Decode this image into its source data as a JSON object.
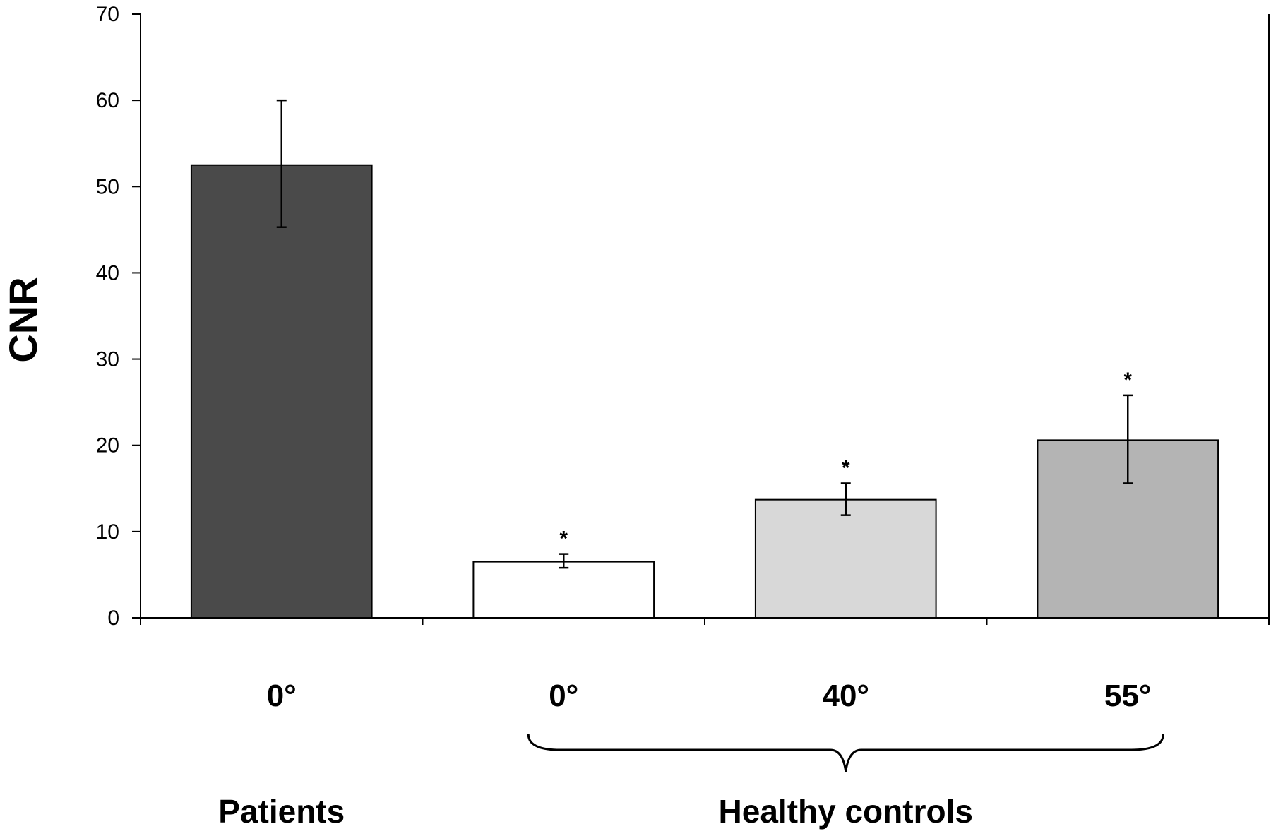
{
  "chart_data": {
    "type": "bar",
    "title": "",
    "xlabel": "",
    "ylabel": "CNR",
    "ylim": [
      0,
      70
    ],
    "yticks": [
      0,
      10,
      20,
      30,
      40,
      50,
      60,
      70
    ],
    "grid": false,
    "legend": "none",
    "categories": [
      "0°",
      "0°",
      "40°",
      "55°"
    ],
    "values": [
      52.5,
      6.5,
      13.7,
      20.6
    ],
    "error_low": [
      45.3,
      5.8,
      11.9,
      15.6
    ],
    "error_high": [
      60.0,
      7.4,
      15.6,
      25.8
    ],
    "significance": [
      "",
      "*",
      "*",
      "*"
    ],
    "bar_colors": [
      "#4a4a4a",
      "#ffffff",
      "#d8d8d8",
      "#b4b4b4"
    ],
    "groups": [
      {
        "label": "Patients",
        "from": 0,
        "to": 0,
        "brace": false
      },
      {
        "label": "Healthy controls",
        "from": 1,
        "to": 3,
        "brace": true
      }
    ]
  }
}
